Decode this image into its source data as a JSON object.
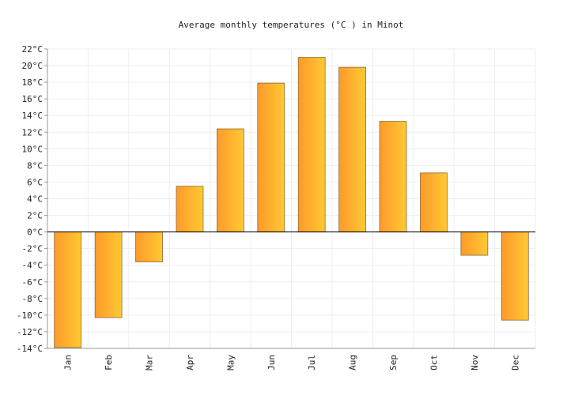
{
  "chart_data": {
    "type": "bar",
    "title": "Average monthly temperatures (°C ) in Minot",
    "categories": [
      "Jan",
      "Feb",
      "Mar",
      "Apr",
      "May",
      "Jun",
      "Jul",
      "Aug",
      "Sep",
      "Oct",
      "Nov",
      "Dec"
    ],
    "series": [
      {
        "values": [
          -13.9,
          -10.3,
          -3.6,
          5.5,
          12.4,
          17.9,
          21.0,
          19.8,
          13.3,
          7.1,
          -2.8,
          -10.6
        ]
      }
    ],
    "ylim": [
      -14,
      22
    ],
    "ytick_step": 2,
    "ytick_suffix": "°C",
    "grid": true,
    "colors": {
      "bar_start": "#ff9a2a",
      "bar_end": "#ffc933",
      "bar_stroke": "#8a6a3a"
    }
  }
}
